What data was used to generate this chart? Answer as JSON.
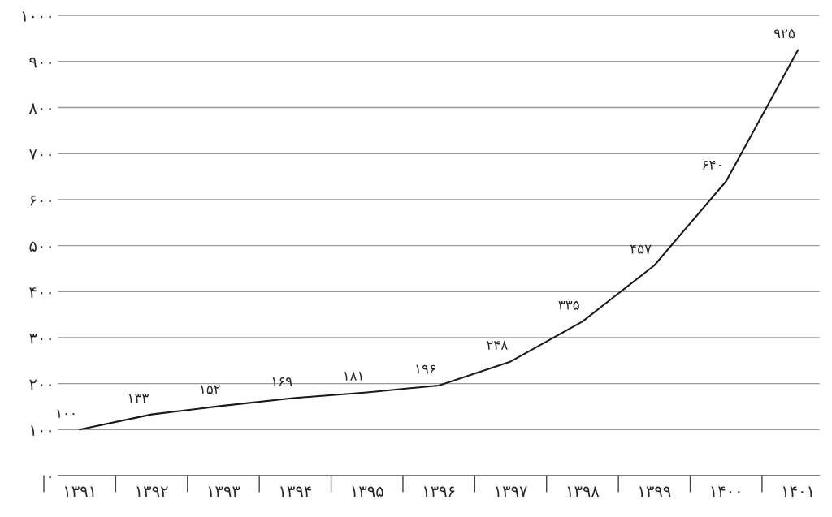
{
  "chart_data": {
    "type": "line",
    "categories": [
      "۱۳۹۱",
      "۱۳۹۲",
      "۱۳۹۳",
      "۱۳۹۴",
      "۱۳۹۵",
      "۱۳۹۶",
      "۱۳۹۷",
      "۱۳۹۸",
      "۱۳۹۹",
      "۱۴۰۰",
      "۱۴۰۱"
    ],
    "series": [
      {
        "color": "#1a1a1a",
        "values": [
          100,
          133,
          152,
          169,
          181,
          196,
          248,
          335,
          457,
          640,
          925
        ],
        "value_labels": [
          "۱۰۰",
          "۱۳۳",
          "۱۵۲",
          "۱۶۹",
          "۱۸۱",
          "۱۹۶",
          "۲۴۸",
          "۳۳۵",
          "۴۵۷",
          "۶۴۰",
          "۹۲۵"
        ]
      }
    ],
    "ylim": [
      0,
      1000
    ],
    "yticks": [
      {
        "value": 0,
        "label": "۰"
      },
      {
        "value": 100,
        "label": "۱۰۰"
      },
      {
        "value": 200,
        "label": "۲۰۰"
      },
      {
        "value": 300,
        "label": "۳۰۰"
      },
      {
        "value": 400,
        "label": "۴۰۰"
      },
      {
        "value": 500,
        "label": "۵۰۰"
      },
      {
        "value": 600,
        "label": "۶۰۰"
      },
      {
        "value": 700,
        "label": "۷۰۰"
      },
      {
        "value": 800,
        "label": "۸۰۰"
      },
      {
        "value": 900,
        "label": "۹۰۰"
      },
      {
        "value": 1000,
        "label": "۱۰۰۰"
      }
    ],
    "grid": "y",
    "legend": false,
    "marker": "none",
    "line_style": "solid"
  }
}
